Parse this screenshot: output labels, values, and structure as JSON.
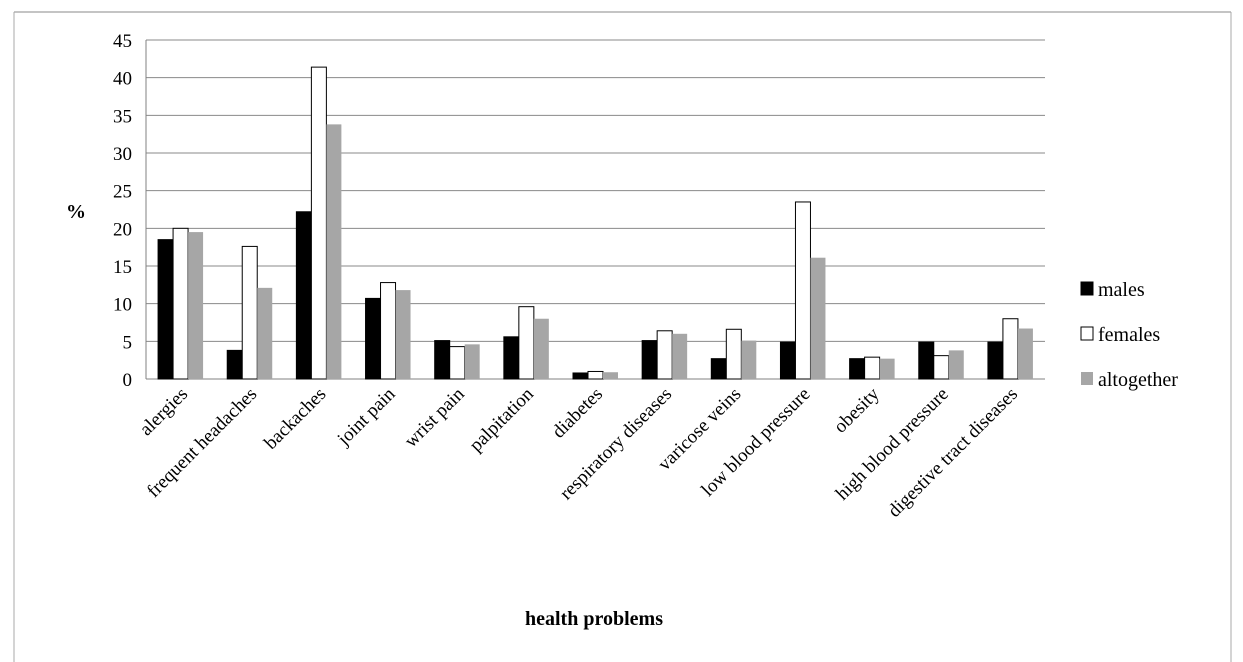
{
  "chart_data": {
    "type": "bar",
    "title": "",
    "xlabel": "health problems",
    "ylabel": "%",
    "ylim": [
      0,
      45
    ],
    "yticks": [
      0,
      5,
      10,
      15,
      20,
      25,
      30,
      35,
      40,
      45
    ],
    "grid": true,
    "legend_position": "right",
    "categories": [
      "alergies",
      "frequent headaches",
      "backaches",
      "joint pain",
      "wrist pain",
      "palpitation",
      "diabetes",
      "respiratory diseases",
      "varicose veins",
      "low blood pressure",
      "obesity",
      "high blood pressure",
      "digestive tract diseases"
    ],
    "series": [
      {
        "name": "males",
        "color": "#000000",
        "values": [
          18.5,
          3.8,
          22.2,
          10.7,
          5.1,
          5.6,
          0.8,
          5.1,
          2.7,
          4.9,
          2.7,
          4.9,
          4.9
        ]
      },
      {
        "name": "females",
        "color": "#ffffff",
        "values": [
          20.0,
          17.6,
          41.4,
          12.8,
          4.3,
          9.6,
          1.0,
          6.4,
          6.6,
          23.5,
          2.9,
          3.1,
          8.0
        ]
      },
      {
        "name": "altogether",
        "color": "#a6a6a6",
        "values": [
          19.5,
          12.1,
          33.8,
          11.8,
          4.6,
          8.0,
          0.9,
          6.0,
          5.1,
          16.1,
          2.7,
          3.8,
          6.7
        ]
      }
    ]
  }
}
